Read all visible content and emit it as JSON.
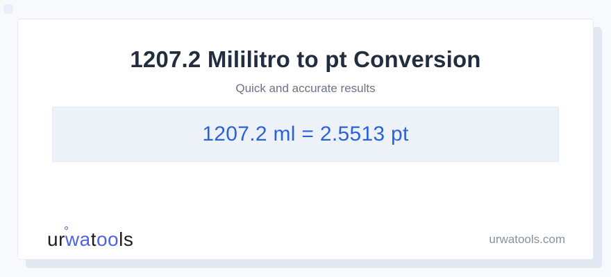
{
  "page": {
    "title": "1207.2 Mililitro to pt Conversion",
    "subtitle": "Quick and accurate results",
    "result": "1207.2 ml = 2.5513 pt",
    "website": "urwatools.com"
  },
  "conversion": {
    "input_value": "1207.2",
    "input_unit": "ml",
    "output_value": "2.5513",
    "output_unit": "pt"
  },
  "logo": {
    "part1": "ur",
    "part2": "wa",
    "part3": "t",
    "part4": "oo",
    "part5": "ls"
  },
  "colors": {
    "page_bg": "#f7f9fc",
    "card_bg": "#ffffff",
    "back_layer": "#e2e8f1",
    "result_box_bg": "#edf2f8",
    "title_dark": "#222d3d",
    "muted_text": "#697386",
    "result_blue": "#2a62d9",
    "logo_blue": "#5061e4",
    "site_link_gray": "#8791a3"
  }
}
